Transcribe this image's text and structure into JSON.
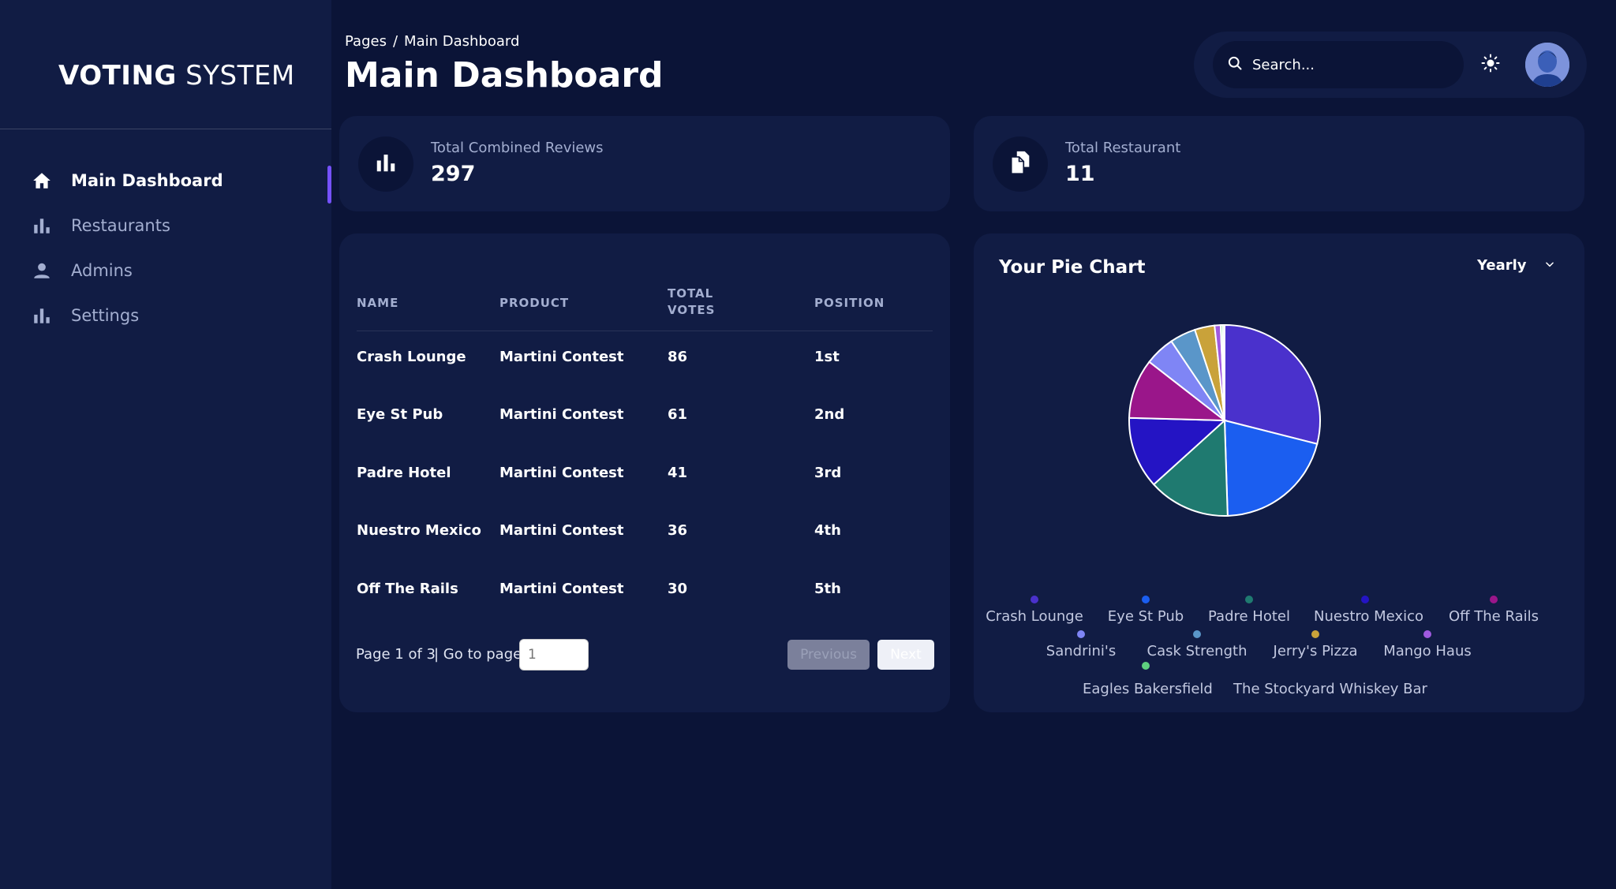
{
  "brand": {
    "bold": "VOTING",
    "light": "SYSTEM"
  },
  "sidebar": {
    "items": [
      {
        "label": "Main Dashboard",
        "icon": "home-icon",
        "active": true
      },
      {
        "label": "Restaurants",
        "icon": "bar-chart-icon",
        "active": false
      },
      {
        "label": "Admins",
        "icon": "person-icon",
        "active": false
      },
      {
        "label": "Settings",
        "icon": "bar-chart-icon",
        "active": false
      }
    ]
  },
  "header": {
    "breadcrumb": {
      "root": "Pages",
      "separator": "/",
      "current": "Main Dashboard"
    },
    "title": "Main Dashboard",
    "search_placeholder": "Search..."
  },
  "stats": [
    {
      "label": "Total Combined Reviews",
      "value": "297",
      "icon": "bar-chart-icon"
    },
    {
      "label": "Total Restaurant",
      "value": "11",
      "icon": "documents-icon"
    }
  ],
  "table": {
    "headers": {
      "name": "NAME",
      "product": "PRODUCT",
      "votes_line1": "TOTAL",
      "votes_line2": "VOTES",
      "position": "POSITION"
    },
    "rows": [
      {
        "name": "Crash Lounge",
        "product": "Martini Contest",
        "votes": "86",
        "position": "1st"
      },
      {
        "name": "Eye St Pub",
        "product": "Martini Contest",
        "votes": "61",
        "position": "2nd"
      },
      {
        "name": "Padre Hotel",
        "product": "Martini Contest",
        "votes": "41",
        "position": "3rd"
      },
      {
        "name": "Nuestro Mexico",
        "product": "Martini Contest",
        "votes": "36",
        "position": "4th"
      },
      {
        "name": "Off The Rails",
        "product": "Martini Contest",
        "votes": "30",
        "position": "5th"
      }
    ],
    "pager": {
      "page_text": "Page 1 of 3",
      "goto_text": "| Go to page:",
      "goto_placeholder": "1",
      "previous": "Previous",
      "next": "Next"
    }
  },
  "pie": {
    "title": "Your Pie Chart",
    "period": "Yearly"
  },
  "chart_data": {
    "type": "pie",
    "title": "Your Pie Chart",
    "legend_position": "bottom",
    "categories": [
      "Crash Lounge",
      "Eye St Pub",
      "Padre Hotel",
      "Nuestro Mexico",
      "Off The Rails",
      "Sandrini's",
      "Cask Strength",
      "Jerry's Pizza",
      "Mango Haus",
      "Eagles Bakersfield",
      "The Stockyard Whiskey Bar"
    ],
    "values": [
      86,
      61,
      41,
      36,
      30,
      15,
      13,
      10,
      3,
      1,
      1
    ],
    "colors": [
      "#4a31cc",
      "#1b5ef0",
      "#1f7a70",
      "#2414c4",
      "#9a168a",
      "#7f85f5",
      "#5a96c9",
      "#c9a23a",
      "#a05ae0",
      "#5ed07f",
      "#e8e8f2"
    ]
  }
}
